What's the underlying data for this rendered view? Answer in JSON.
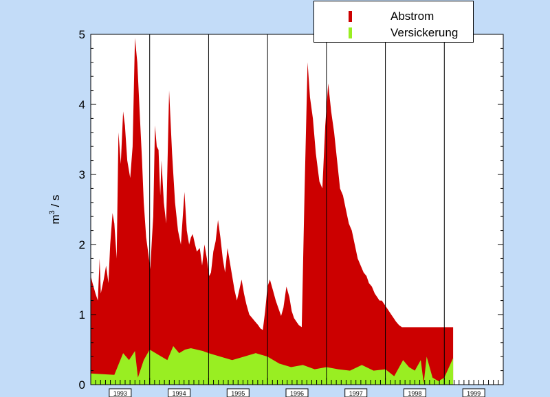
{
  "legend": {
    "items": [
      {
        "label": "Abstrom",
        "color": "#cc0000"
      },
      {
        "label": "Versickerung",
        "color": "#99ee22"
      }
    ]
  },
  "chart_data": {
    "type": "area",
    "title": "",
    "xlabel": "",
    "ylabel": "m³ / s",
    "ylabel_base": "m",
    "ylabel_sup": "3",
    "ylabel_rest": " / s",
    "xlim": [
      1993.0,
      2000.0
    ],
    "ylim": [
      0,
      5
    ],
    "yticks": [
      0,
      1,
      2,
      3,
      4,
      5
    ],
    "ytick_labels": [
      "0",
      "1",
      "2",
      "3",
      "4",
      "5"
    ],
    "year_labels": [
      "1993",
      "1994",
      "1995",
      "1996",
      "1997",
      "1998",
      "1999"
    ],
    "year_dividers": [
      1994.0,
      1995.0,
      1996.0,
      1997.0,
      1998.0,
      1999.0
    ],
    "grid": false,
    "legend_position": "top-right",
    "series": [
      {
        "name": "Abstrom",
        "color": "#cc0000",
        "x": [
          1993.0,
          1993.03,
          1993.08,
          1993.12,
          1993.15,
          1993.17,
          1993.22,
          1993.26,
          1993.3,
          1993.33,
          1993.37,
          1993.4,
          1993.44,
          1993.47,
          1993.51,
          1993.55,
          1993.58,
          1993.62,
          1993.67,
          1993.71,
          1993.75,
          1993.79,
          1993.83,
          1993.87,
          1993.9,
          1993.94,
          1993.98,
          1994.01,
          1994.04,
          1994.06,
          1994.09,
          1994.12,
          1994.15,
          1994.18,
          1994.2,
          1994.24,
          1994.28,
          1994.33,
          1994.38,
          1994.43,
          1994.48,
          1994.53,
          1994.59,
          1994.63,
          1994.67,
          1994.7,
          1994.73,
          1994.77,
          1994.8,
          1994.85,
          1994.89,
          1994.93,
          1994.97,
          1995.01,
          1995.04,
          1995.08,
          1995.12,
          1995.16,
          1995.2,
          1995.24,
          1995.28,
          1995.32,
          1995.36,
          1995.4,
          1995.44,
          1995.48,
          1995.52,
          1995.56,
          1995.6,
          1995.64,
          1995.69,
          1995.74,
          1995.79,
          1995.84,
          1995.88,
          1995.92,
          1995.96,
          1996.0,
          1996.04,
          1996.09,
          1996.14,
          1996.18,
          1996.23,
          1996.27,
          1996.32,
          1996.37,
          1996.41,
          1996.45,
          1996.49,
          1996.53,
          1996.58,
          1996.63,
          1996.68,
          1996.72,
          1996.77,
          1996.82,
          1996.88,
          1996.93,
          1996.98,
          1997.03,
          1997.08,
          1997.13,
          1997.18,
          1997.23,
          1997.28,
          1997.33,
          1997.38,
          1997.43,
          1997.48,
          1997.53,
          1997.58,
          1997.63,
          1997.68,
          1997.72,
          1997.77,
          1997.82,
          1997.86,
          1997.9,
          1997.94,
          1997.98,
          1998.02,
          1998.06,
          1998.1,
          1998.14,
          1998.18,
          1998.23,
          1998.28,
          1998.33,
          1998.38,
          1998.42,
          1998.46,
          1998.5,
          1998.54,
          1998.58,
          1998.61,
          1998.63,
          1998.67,
          1998.71,
          1998.75,
          1998.79,
          1998.83,
          1998.87,
          1998.91,
          1998.94,
          1998.97,
          1999.0,
          1999.03,
          1999.07,
          1999.1,
          1999.13,
          1999.15
        ],
        "values": [
          1.55,
          1.45,
          1.3,
          1.2,
          1.8,
          1.3,
          1.5,
          1.7,
          1.45,
          2.0,
          2.45,
          2.3,
          1.8,
          3.6,
          3.15,
          3.9,
          3.7,
          3.2,
          2.95,
          3.4,
          4.95,
          4.6,
          3.9,
          3.2,
          2.6,
          2.1,
          1.85,
          1.65,
          2.1,
          2.4,
          3.7,
          3.4,
          3.35,
          2.7,
          3.2,
          2.6,
          2.3,
          4.2,
          3.3,
          2.6,
          2.2,
          2.0,
          2.75,
          2.2,
          2.0,
          2.1,
          2.15,
          2.0,
          1.9,
          1.95,
          1.7,
          2.0,
          1.8,
          1.55,
          1.6,
          1.9,
          2.05,
          2.35,
          2.1,
          1.8,
          1.6,
          1.95,
          1.75,
          1.55,
          1.35,
          1.2,
          1.35,
          1.5,
          1.3,
          1.15,
          1.0,
          0.95,
          0.9,
          0.85,
          0.8,
          0.78,
          1.05,
          1.4,
          1.5,
          1.35,
          1.2,
          1.1,
          0.98,
          1.1,
          1.4,
          1.25,
          1.05,
          0.95,
          0.9,
          0.85,
          0.82,
          2.8,
          4.6,
          4.1,
          3.8,
          3.3,
          2.9,
          2.8,
          3.7,
          4.3,
          3.9,
          3.6,
          3.2,
          2.8,
          2.7,
          2.5,
          2.3,
          2.2,
          2.0,
          1.8,
          1.7,
          1.6,
          1.55,
          1.45,
          1.4,
          1.3,
          1.25,
          1.2,
          1.2,
          1.15,
          1.1,
          1.05,
          1.0,
          0.95,
          0.9,
          0.85,
          0.82,
          0.82,
          0.82,
          0.82,
          0.82,
          0.82,
          0.82,
          0.82,
          0.82,
          0.82,
          0.82,
          0.82,
          0.82,
          0.82,
          0.82,
          0.82,
          0.82,
          0.82,
          0.82,
          0.82,
          0.82,
          0.82,
          0.82,
          0.82,
          0.82
        ]
      },
      {
        "name": "Versickerung",
        "color": "#99ee22",
        "x": [
          1993.0,
          1993.2,
          1993.4,
          1993.55,
          1993.65,
          1993.75,
          1993.8,
          1993.9,
          1994.0,
          1994.1,
          1994.2,
          1994.3,
          1994.4,
          1994.5,
          1994.6,
          1994.7,
          1994.8,
          1994.9,
          1995.0,
          1995.2,
          1995.4,
          1995.6,
          1995.8,
          1996.0,
          1996.2,
          1996.4,
          1996.6,
          1996.8,
          1997.0,
          1997.2,
          1997.4,
          1997.6,
          1997.8,
          1998.0,
          1998.15,
          1998.3,
          1998.4,
          1998.5,
          1998.6,
          1998.65,
          1998.7,
          1998.8,
          1998.9,
          1999.0,
          1999.15
        ],
        "values": [
          0.16,
          0.15,
          0.14,
          0.45,
          0.35,
          0.48,
          0.1,
          0.35,
          0.5,
          0.45,
          0.4,
          0.35,
          0.55,
          0.45,
          0.5,
          0.52,
          0.5,
          0.48,
          0.45,
          0.4,
          0.35,
          0.4,
          0.45,
          0.4,
          0.3,
          0.25,
          0.28,
          0.22,
          0.25,
          0.22,
          0.2,
          0.28,
          0.2,
          0.22,
          0.12,
          0.35,
          0.25,
          0.2,
          0.35,
          0.02,
          0.4,
          0.1,
          0.05,
          0.1,
          0.38
        ]
      }
    ]
  }
}
